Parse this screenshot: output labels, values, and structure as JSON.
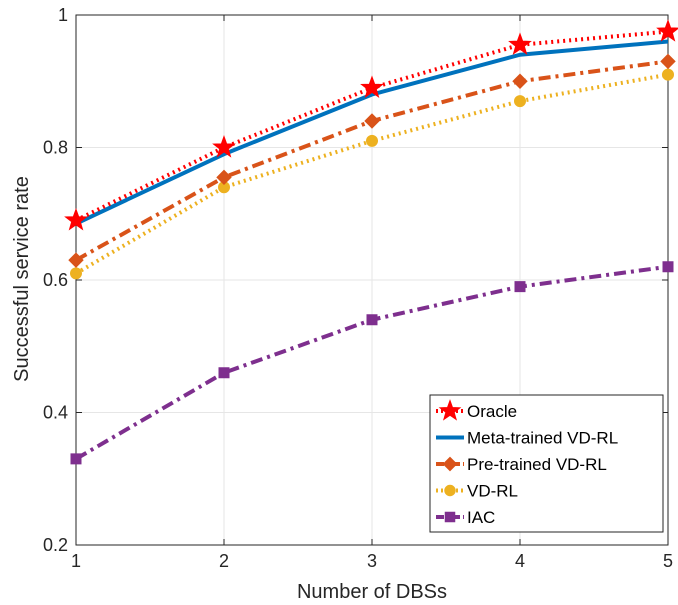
{
  "chart_data": {
    "type": "line",
    "xlabel": "Number of DBSs",
    "ylabel": "Successful service rate",
    "x": [
      1,
      2,
      3,
      4,
      5
    ],
    "xlim": [
      1,
      5
    ],
    "ylim": [
      0.2,
      1
    ],
    "xticks": [
      "1",
      "2",
      "3",
      "4",
      "5"
    ],
    "yticks": [
      "0.2",
      "0.4",
      "0.6",
      "0.8",
      "1"
    ],
    "xtick_values": [
      1,
      2,
      3,
      4,
      5
    ],
    "ytick_values": [
      0.2,
      0.4,
      0.6,
      0.8,
      1.0
    ],
    "grid": true,
    "legend_position": "bottom-right",
    "series": [
      {
        "name": "Oracle",
        "values": [
          0.69,
          0.8,
          0.89,
          0.955,
          0.975
        ],
        "color": "#ff0000",
        "line": "dotted",
        "marker": "star"
      },
      {
        "name": "Meta-trained VD-RL",
        "values": [
          0.685,
          0.79,
          0.88,
          0.94,
          0.96
        ],
        "color": "#0072bd",
        "line": "solid",
        "marker": "none"
      },
      {
        "name": "Pre-trained VD-RL",
        "values": [
          0.63,
          0.755,
          0.84,
          0.9,
          0.93
        ],
        "color": "#d95319",
        "line": "dashdot",
        "marker": "diamond"
      },
      {
        "name": "VD-RL",
        "values": [
          0.61,
          0.74,
          0.81,
          0.87,
          0.91
        ],
        "color": "#edb120",
        "line": "dotted",
        "marker": "circle"
      },
      {
        "name": "IAC",
        "values": [
          0.33,
          0.46,
          0.54,
          0.59,
          0.62
        ],
        "color": "#7e2f8e",
        "line": "dashdot",
        "marker": "square"
      }
    ]
  }
}
